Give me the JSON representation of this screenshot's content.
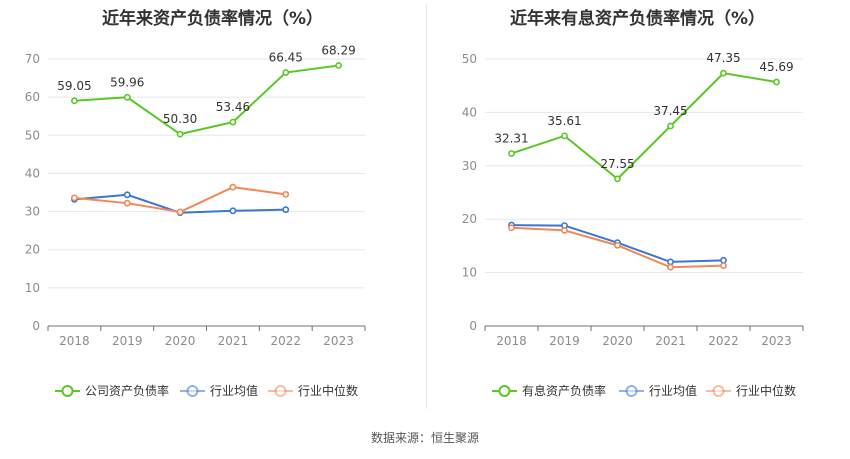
{
  "source": "数据来源：恒生聚源",
  "chart_data": [
    {
      "type": "line",
      "title": "近年来资产负债率情况（%）",
      "categories": [
        "2018",
        "2019",
        "2020",
        "2021",
        "2022",
        "2023"
      ],
      "ylim": [
        0,
        70
      ],
      "yticks": [
        0,
        10,
        20,
        30,
        40,
        50,
        60,
        70
      ],
      "grid": true,
      "legend_position": "bottom",
      "series": [
        {
          "name": "公司资产负债率",
          "color": "#5ac725",
          "values": [
            59.05,
            59.96,
            50.3,
            53.46,
            66.45,
            68.29
          ],
          "labels": [
            "59.05",
            "59.96",
            "50.30",
            "53.46",
            "66.45",
            "68.29"
          ]
        },
        {
          "name": "行业均值",
          "color": "#3b76d6",
          "values": [
            33.2,
            34.4,
            29.7,
            30.2,
            30.5,
            null
          ]
        },
        {
          "name": "行业中位数",
          "color": "#f08858",
          "values": [
            33.6,
            32.2,
            29.9,
            36.4,
            34.5,
            null
          ]
        }
      ]
    },
    {
      "type": "line",
      "title": "近年来有息资产负债率情况（%）",
      "categories": [
        "2018",
        "2019",
        "2020",
        "2021",
        "2022",
        "2023"
      ],
      "ylim": [
        0,
        50
      ],
      "yticks": [
        0,
        10,
        20,
        30,
        40,
        50
      ],
      "grid": true,
      "legend_position": "bottom",
      "series": [
        {
          "name": "有息资产负债率",
          "color": "#5ac725",
          "values": [
            32.31,
            35.61,
            27.55,
            37.45,
            47.35,
            45.69
          ],
          "labels": [
            "32.31",
            "35.61",
            "27.55",
            "37.45",
            "47.35",
            "45.69"
          ]
        },
        {
          "name": "行业均值",
          "color": "#3b76d6",
          "values": [
            18.9,
            18.8,
            15.6,
            12.0,
            12.3,
            null
          ]
        },
        {
          "name": "行业中位数",
          "color": "#f08858",
          "values": [
            18.4,
            17.9,
            15.1,
            11.0,
            11.3,
            null
          ]
        }
      ]
    }
  ]
}
